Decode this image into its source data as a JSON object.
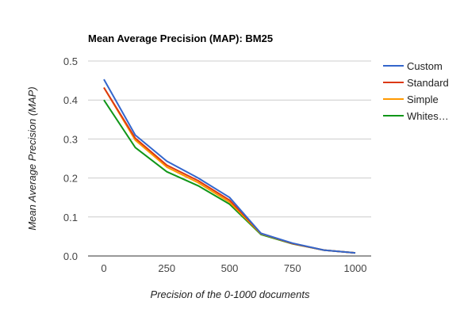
{
  "chart_data": {
    "type": "line",
    "title": "Mean Average Precision (MAP): BM25",
    "xlabel": "Precision of the 0-1000 documents",
    "ylabel": "Mean Average Precision (MAP)",
    "xlim": [
      0,
      1000
    ],
    "ylim": [
      0,
      0.5
    ],
    "x_ticks": [
      "0",
      "250",
      "500",
      "750",
      "1000"
    ],
    "y_ticks": [
      "0.0",
      "0.1",
      "0.2",
      "0.3",
      "0.4",
      "0.5"
    ],
    "grid": true,
    "legend_position": "right",
    "x": [
      0,
      125,
      250,
      375,
      500,
      625,
      750,
      875,
      1000
    ],
    "series": [
      {
        "name": "Custom",
        "legend_label": "Custom",
        "color": "#3366cc",
        "values": [
          0.453,
          0.31,
          0.243,
          0.2,
          0.15,
          0.058,
          0.033,
          0.015,
          0.008
        ]
      },
      {
        "name": "Standard",
        "legend_label": "Standard",
        "color": "#dc3912",
        "values": [
          0.432,
          0.302,
          0.233,
          0.193,
          0.143,
          0.058,
          0.032,
          0.015,
          0.008
        ]
      },
      {
        "name": "Simple",
        "legend_label": "Simple",
        "color": "#ff9900",
        "values": [
          0.432,
          0.297,
          0.228,
          0.188,
          0.138,
          0.057,
          0.032,
          0.015,
          0.008
        ]
      },
      {
        "name": "Whites…",
        "legend_label": "Whites…",
        "color": "#109618",
        "values": [
          0.4,
          0.278,
          0.216,
          0.18,
          0.133,
          0.055,
          0.031,
          0.015,
          0.008
        ]
      }
    ]
  }
}
